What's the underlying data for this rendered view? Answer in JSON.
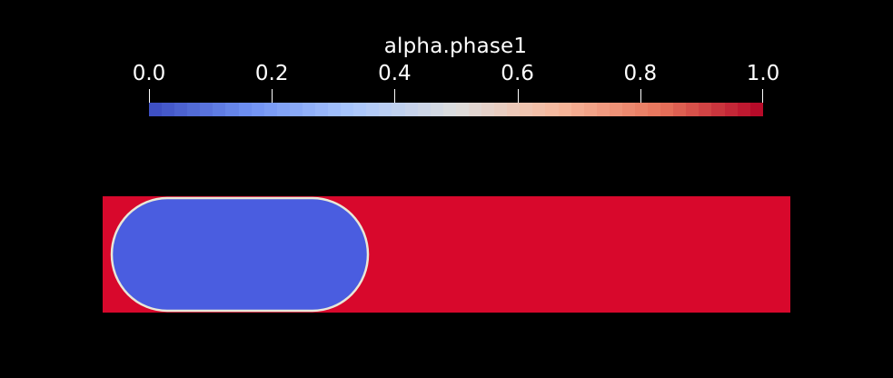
{
  "legend": {
    "title": "alpha.phase1",
    "tick_labels": [
      "0.0",
      "0.2",
      "0.4",
      "0.6",
      "0.8",
      "1.0"
    ],
    "range": [
      0.0,
      1.0
    ],
    "colormap_stops": [
      "#3b4cc0",
      "#7092f3",
      "#aac7fd",
      "#dddddd",
      "#f7b89c",
      "#e7745b",
      "#b40426"
    ]
  },
  "render": {
    "background_color": "#000000",
    "domain_color": "#d8082c",
    "bubble_color": "#4a5de0",
    "interface_color": "#e8e8d8"
  }
}
